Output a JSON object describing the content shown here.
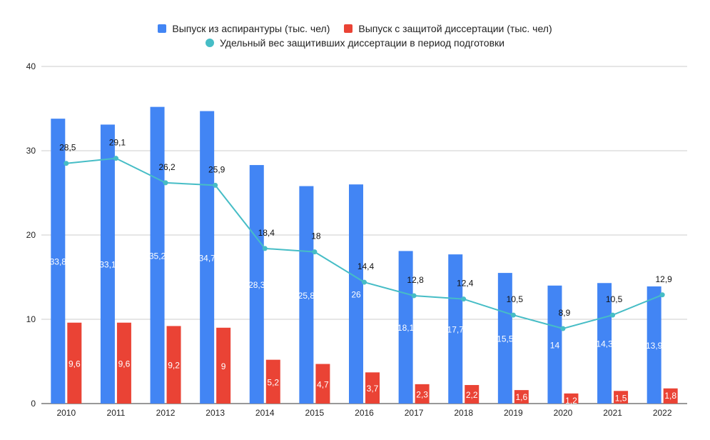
{
  "chart_data": {
    "type": "bar",
    "categories": [
      "2010",
      "2011",
      "2012",
      "2013",
      "2014",
      "2015",
      "2016",
      "2017",
      "2018",
      "2019",
      "2020",
      "2021",
      "2022"
    ],
    "series": [
      {
        "name": "Выпуск из аспирантуры (тыс. чел)",
        "type": "bar",
        "color": "#4285f4",
        "values": [
          33.8,
          33.1,
          35.2,
          34.7,
          28.3,
          25.8,
          26,
          18.1,
          17.7,
          15.5,
          14,
          14.3,
          13.9
        ],
        "labels": [
          "33,8",
          "33,1",
          "35,2",
          "34,7",
          "28,3",
          "25,8",
          "26",
          "18,1",
          "17,7",
          "15,5",
          "14",
          "14,3",
          "13,9"
        ]
      },
      {
        "name": "Выпуск с защитой диссертации (тыс. чел)",
        "type": "bar",
        "color": "#ea4335",
        "values": [
          9.6,
          9.6,
          9.2,
          9,
          5.2,
          4.7,
          3.7,
          2.3,
          2.2,
          1.6,
          1.2,
          1.5,
          1.8
        ],
        "labels": [
          "9,6",
          "9,6",
          "9,2",
          "9",
          "5,2",
          "4,7",
          "3,7",
          "2,3",
          "2,2",
          "1,6",
          "1,2",
          "1,5",
          "1,8"
        ]
      },
      {
        "name": "Удельный вес защитивших диссертации в период подготовки",
        "type": "line",
        "color": "#46bdc6",
        "values": [
          28.5,
          29.1,
          26.2,
          25.9,
          18.4,
          18,
          14.4,
          12.8,
          12.4,
          10.5,
          8.9,
          10.5,
          12.9
        ],
        "labels": [
          "28,5",
          "29,1",
          "26,2",
          "25,9",
          "18,4",
          "18",
          "14,4",
          "12,8",
          "12,4",
          "10,5",
          "8,9",
          "10,5",
          "12,9"
        ]
      }
    ],
    "ylim": [
      0,
      40
    ],
    "yticks": [
      "0",
      "10",
      "20",
      "30",
      "40"
    ],
    "grid": true,
    "legend_position": "top"
  }
}
